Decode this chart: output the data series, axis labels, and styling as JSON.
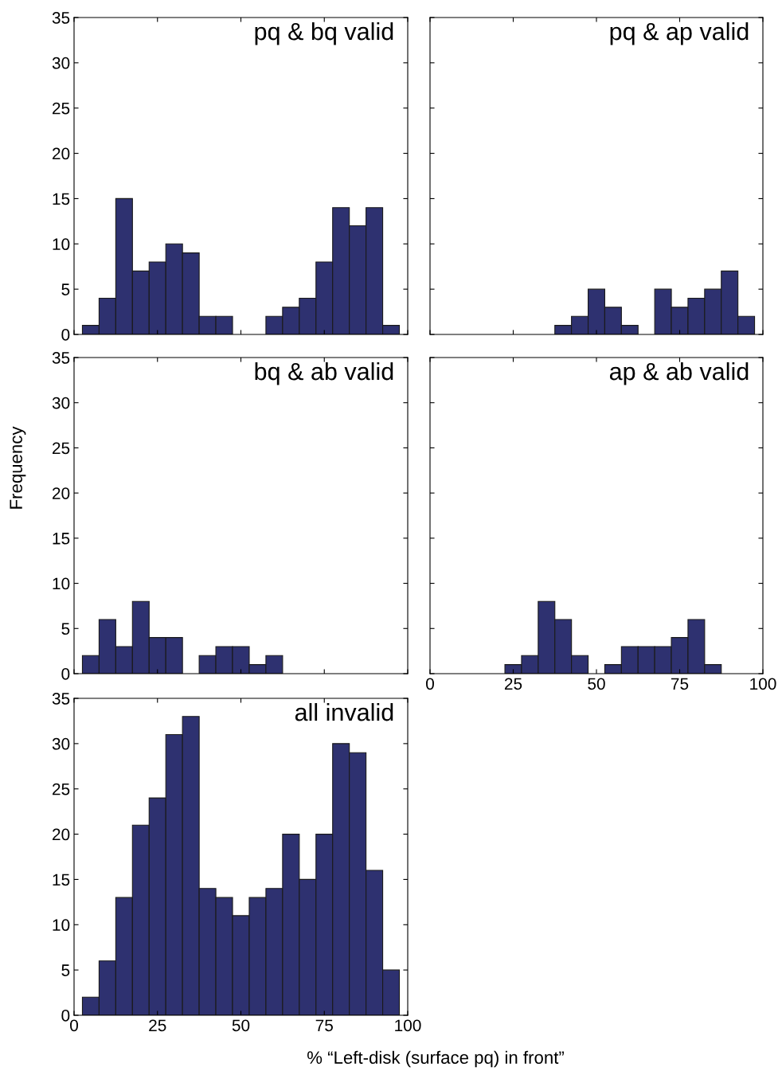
{
  "chart_data": [
    {
      "type": "histogram",
      "title": "pq & bq valid",
      "bins": [
        2.5,
        7.5,
        12.5,
        17.5,
        22.5,
        27.5,
        32.5,
        37.5,
        42.5,
        47.5,
        52.5,
        57.5,
        62.5,
        67.5,
        72.5,
        77.5,
        82.5,
        87.5,
        92.5,
        97.5
      ],
      "values": [
        1,
        4,
        15,
        7,
        8,
        10,
        9,
        2,
        2,
        0,
        0,
        2,
        3,
        4,
        8,
        14,
        12,
        14,
        1
      ],
      "color": "#2e3170",
      "xlim": [
        0,
        100
      ],
      "xticks": [
        0,
        25,
        50,
        75,
        100
      ],
      "ylim": [
        0,
        35
      ],
      "yticks": [
        0,
        5,
        10,
        15,
        20,
        25,
        30,
        35
      ],
      "tick_labels": "y",
      "grid": false,
      "legend": false
    },
    {
      "type": "histogram",
      "title": "pq & ap valid",
      "bins": [
        2.5,
        7.5,
        12.5,
        17.5,
        22.5,
        27.5,
        32.5,
        37.5,
        42.5,
        47.5,
        52.5,
        57.5,
        62.5,
        67.5,
        72.5,
        77.5,
        82.5,
        87.5,
        92.5,
        97.5
      ],
      "values": [
        0,
        0,
        0,
        0,
        0,
        0,
        0,
        1,
        2,
        5,
        3,
        1,
        0,
        5,
        3,
        4,
        5,
        7,
        2
      ],
      "color": "#2e3170",
      "xlim": [
        0,
        100
      ],
      "xticks": [
        0,
        25,
        50,
        75,
        100
      ],
      "ylim": [
        0,
        35
      ],
      "yticks": [
        0,
        5,
        10,
        15,
        20,
        25,
        30,
        35
      ],
      "tick_labels": false,
      "grid": false,
      "legend": false
    },
    {
      "type": "histogram",
      "title": "bq & ab valid",
      "ylabel": "Frequency",
      "bins": [
        2.5,
        7.5,
        12.5,
        17.5,
        22.5,
        27.5,
        32.5,
        37.5,
        42.5,
        47.5,
        52.5,
        57.5,
        62.5,
        67.5,
        72.5,
        77.5,
        82.5,
        87.5,
        92.5,
        97.5
      ],
      "values": [
        2,
        6,
        3,
        8,
        4,
        4,
        0,
        2,
        3,
        3,
        1,
        2,
        0,
        0,
        0,
        0,
        0,
        0,
        0
      ],
      "color": "#2e3170",
      "xlim": [
        0,
        100
      ],
      "xticks": [
        0,
        25,
        50,
        75,
        100
      ],
      "ylim": [
        0,
        35
      ],
      "yticks": [
        0,
        5,
        10,
        15,
        20,
        25,
        30,
        35
      ],
      "tick_labels": "y",
      "grid": false,
      "legend": false
    },
    {
      "type": "histogram",
      "title": "ap & ab valid",
      "bins": [
        2.5,
        7.5,
        12.5,
        17.5,
        22.5,
        27.5,
        32.5,
        37.5,
        42.5,
        47.5,
        52.5,
        57.5,
        62.5,
        67.5,
        72.5,
        77.5,
        82.5,
        87.5,
        92.5,
        97.5
      ],
      "values": [
        0,
        0,
        0,
        0,
        1,
        2,
        8,
        6,
        2,
        0,
        1,
        3,
        3,
        3,
        4,
        6,
        1,
        0,
        0
      ],
      "color": "#2e3170",
      "xlim": [
        0,
        100
      ],
      "xticks": [
        0,
        25,
        50,
        75,
        100
      ],
      "ylim": [
        0,
        35
      ],
      "yticks": [
        0,
        5,
        10,
        15,
        20,
        25,
        30,
        35
      ],
      "tick_labels": "x",
      "grid": false,
      "legend": false
    },
    {
      "type": "histogram",
      "title": "all invalid",
      "xlabel": "% “Left-disk (surface pq) in front”",
      "bins": [
        2.5,
        7.5,
        12.5,
        17.5,
        22.5,
        27.5,
        32.5,
        37.5,
        42.5,
        47.5,
        52.5,
        57.5,
        62.5,
        67.5,
        72.5,
        77.5,
        82.5,
        87.5,
        92.5,
        97.5
      ],
      "values": [
        2,
        6,
        13,
        21,
        24,
        31,
        33,
        14,
        13,
        11,
        13,
        14,
        20,
        15,
        20,
        30,
        29,
        16,
        5
      ],
      "color": "#2e3170",
      "xlim": [
        0,
        100
      ],
      "xticks": [
        0,
        25,
        50,
        75,
        100
      ],
      "ylim": [
        0,
        35
      ],
      "yticks": [
        0,
        5,
        10,
        15,
        20,
        25,
        30,
        35
      ],
      "grid": false,
      "legend": false
    }
  ]
}
